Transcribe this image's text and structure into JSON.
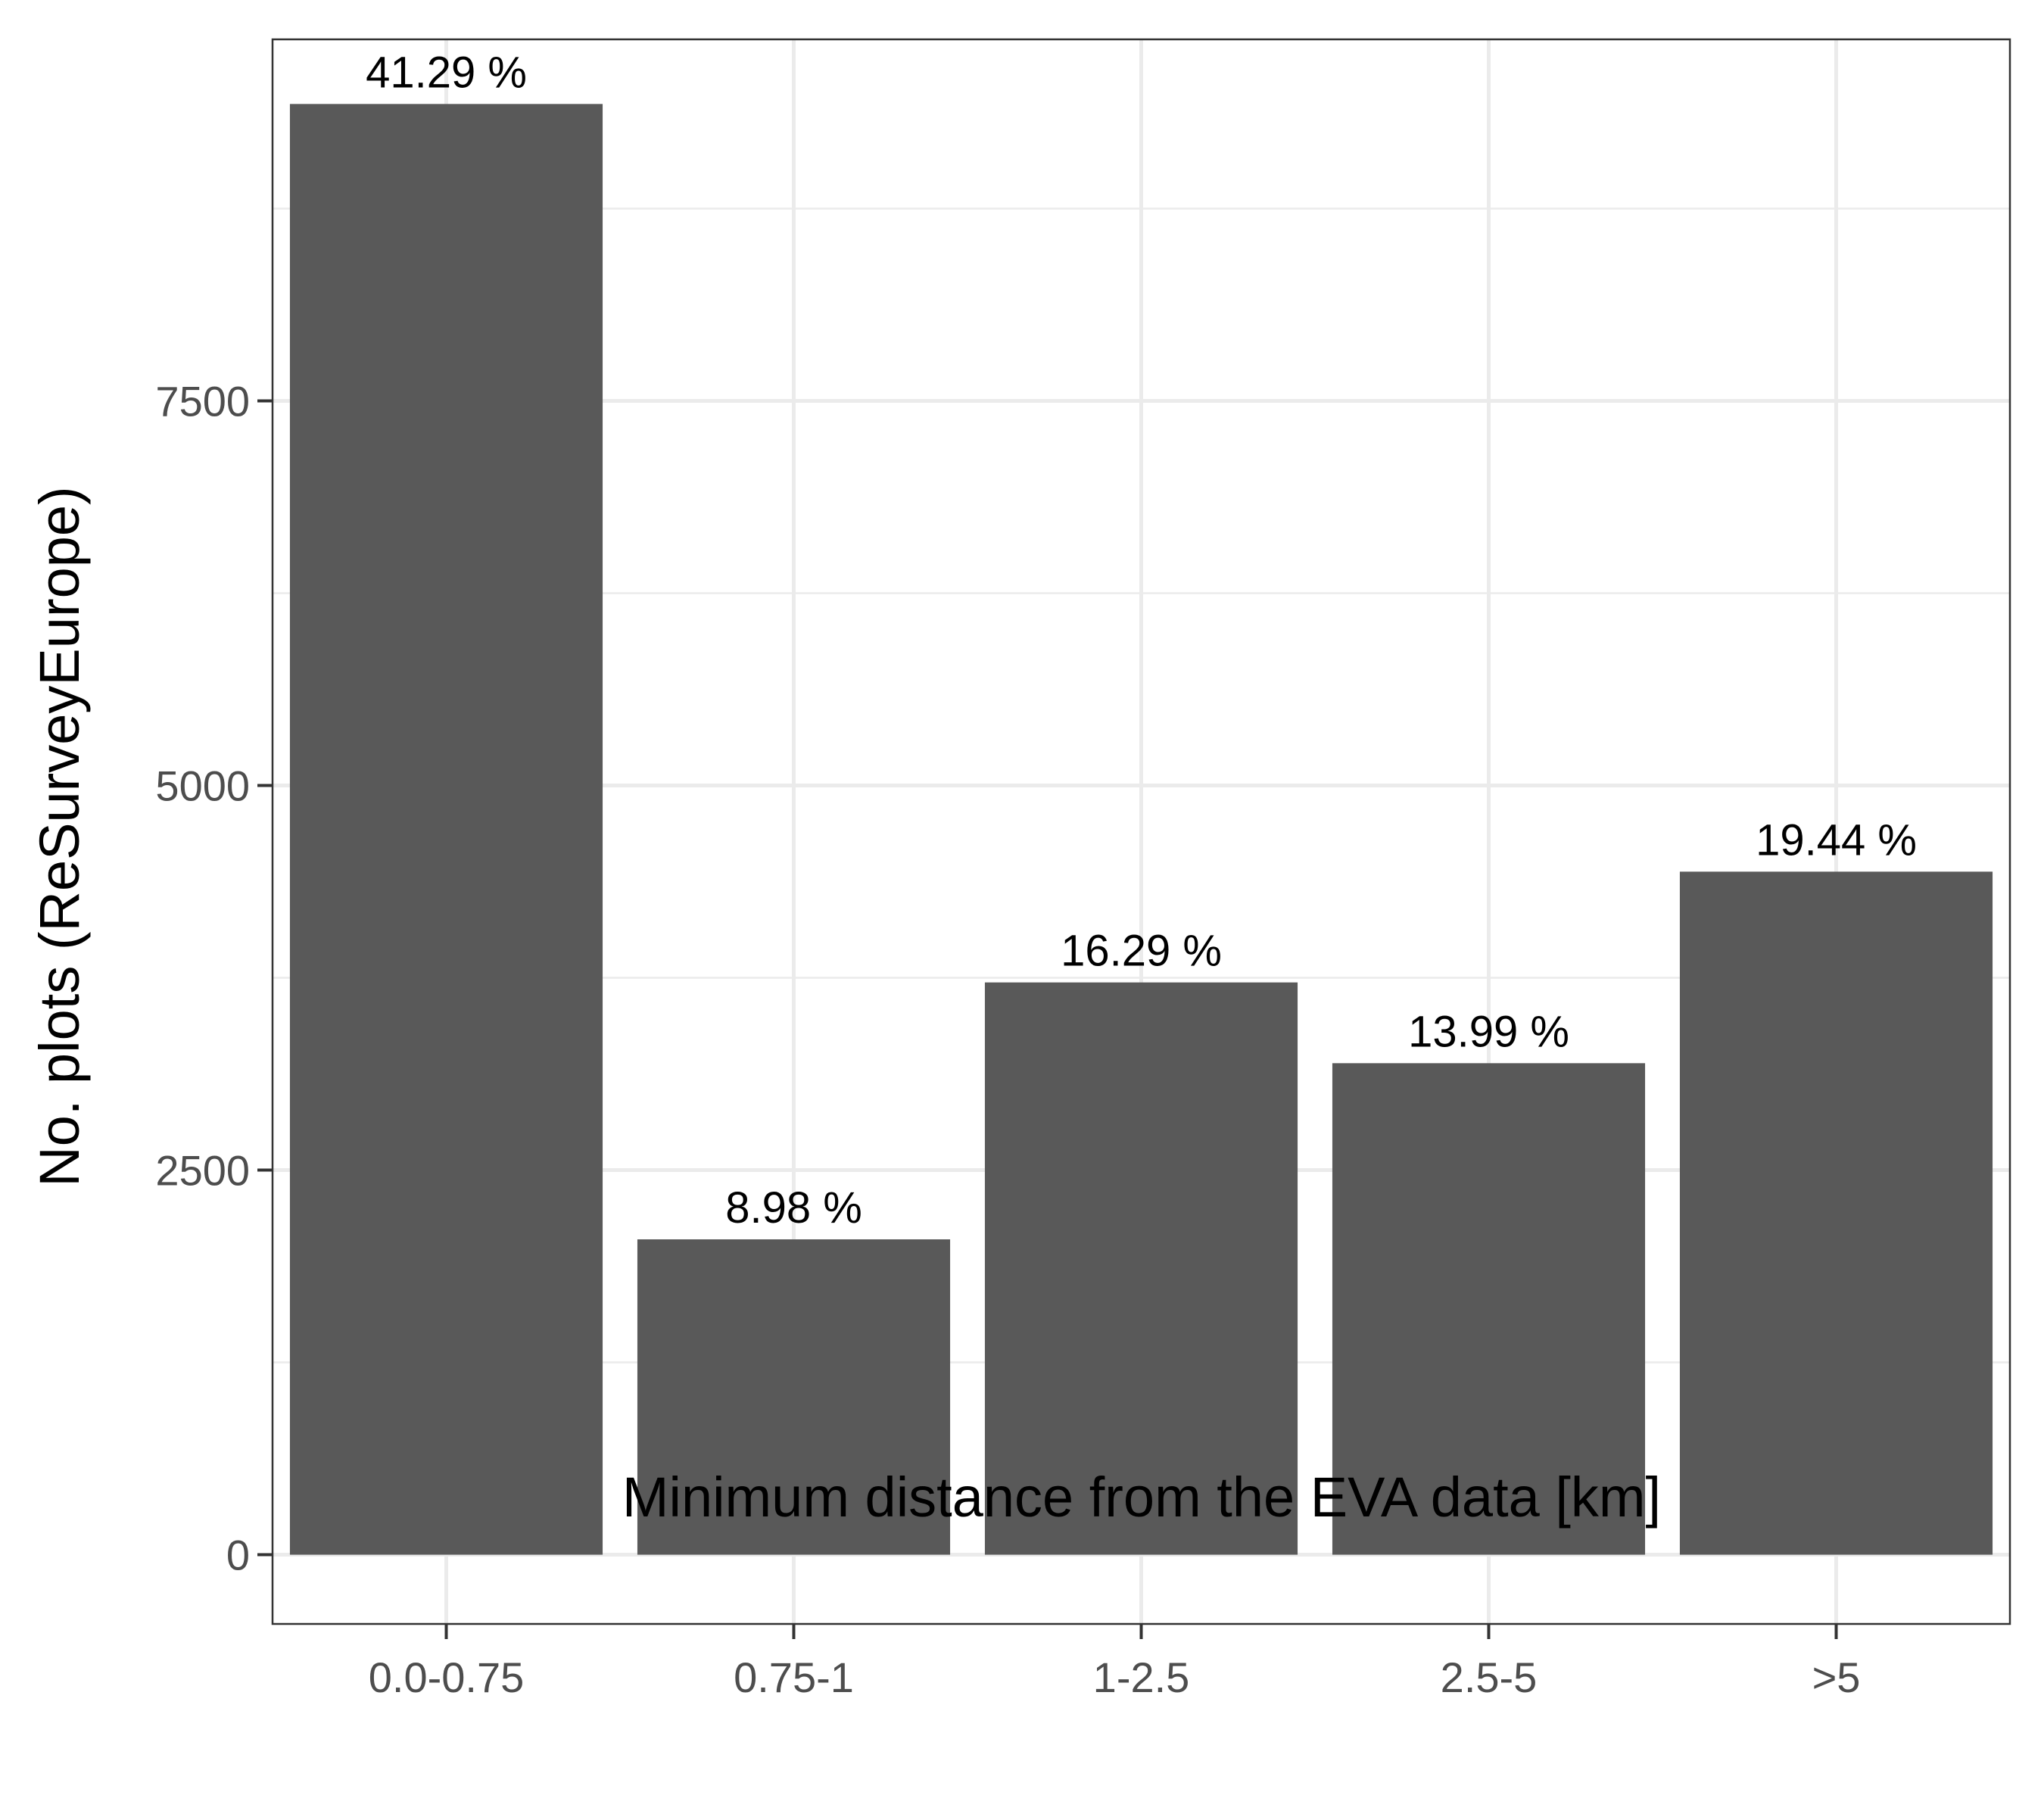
{
  "chart_data": {
    "type": "bar",
    "title": "",
    "xlabel": "Minimum distance from the EVA data [km]",
    "ylabel": "No. plots (ReSurveyEurope)",
    "categories": [
      "0.0-0.75",
      "0.75-1",
      "1-2.5",
      "2.5-5",
      ">5"
    ],
    "values": [
      9430,
      2050,
      3720,
      3195,
      4440
    ],
    "data_labels": [
      "41.29 %",
      "8.98 %",
      "16.29 %",
      "13.99 %",
      "19.44 %"
    ],
    "ylim": [
      -450,
      9850
    ],
    "y_ticks": [
      0,
      2500,
      5000,
      7500
    ],
    "y_tick_labels": [
      "0",
      "2500",
      "5000",
      "7500"
    ],
    "y_minor_ticks": [
      1250,
      3750,
      6250,
      8750
    ],
    "grid": true,
    "legend": "none",
    "colors": {
      "bar": "#595959",
      "grid": "#ebebeb",
      "panel_border": "#333333",
      "tick": "#333333",
      "tick_label": "#4d4d4d",
      "text": "#000000"
    }
  }
}
